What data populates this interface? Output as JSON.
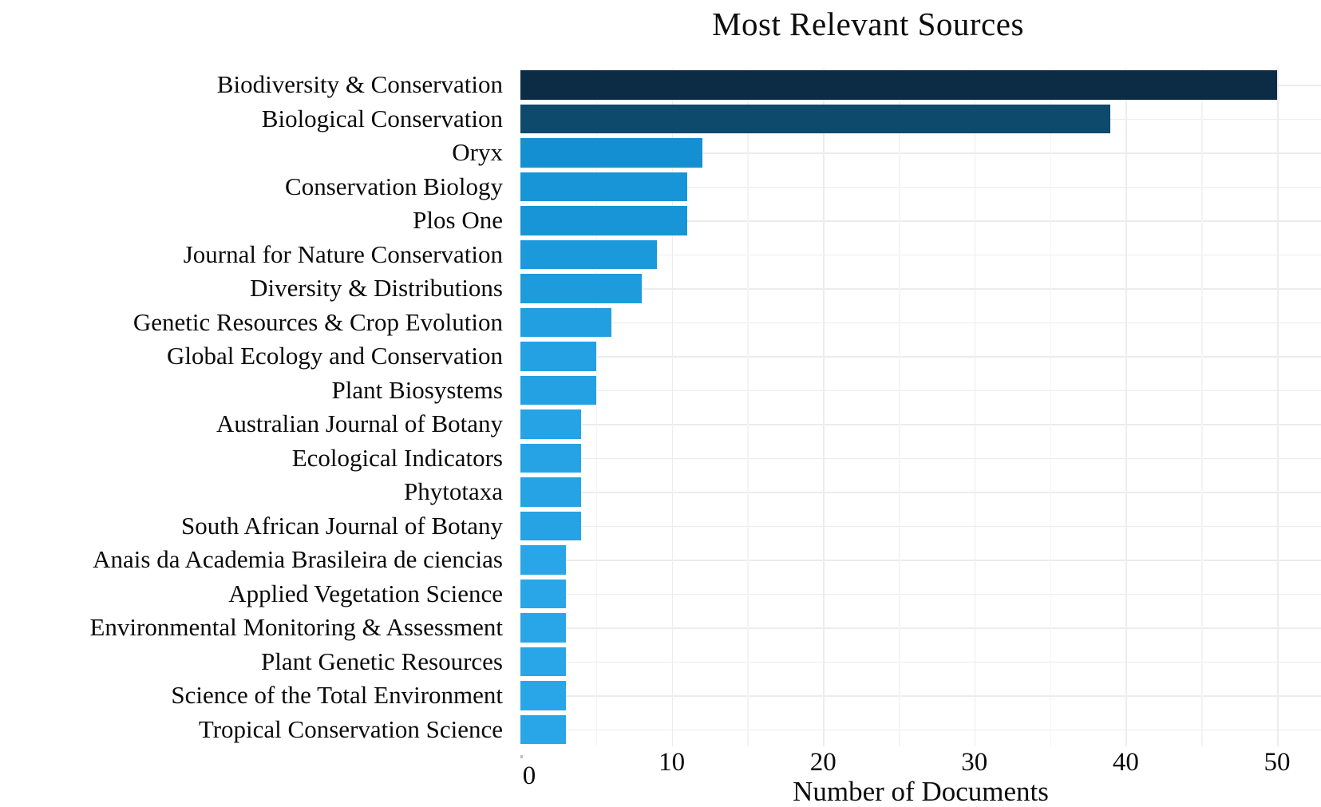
{
  "page": {
    "background": "#ffffff"
  },
  "chart_data": {
    "type": "bar",
    "orientation": "horizontal",
    "title": "Most Relevant Sources",
    "xlabel": "Number of Documents",
    "ylabel": "",
    "categories": [
      "Biodiversity & Conservation",
      "Biological Conservation",
      "Oryx",
      "Conservation Biology",
      "Plos One",
      "Journal for Nature Conservation",
      "Diversity & Distributions",
      "Genetic Resources & Crop Evolution",
      "Global Ecology and Conservation",
      "Plant Biosystems",
      "Australian Journal of Botany",
      "Ecological Indicators",
      "Phytotaxa",
      "South African Journal of Botany",
      "Anais da Academia Brasileira de ciencias",
      "Applied Vegetation Science",
      "Environmental Monitoring & Assessment",
      "Plant Genetic Resources",
      "Science of the Total Environment",
      "Tropical Conservation Science"
    ],
    "values": [
      50,
      39,
      12,
      11,
      11,
      9,
      8,
      6,
      5,
      5,
      4,
      4,
      4,
      4,
      3,
      3,
      3,
      3,
      3,
      3
    ],
    "bar_colors": [
      "#0c2b45",
      "#0e4a6b",
      "#1490d2",
      "#1795d6",
      "#1795d6",
      "#1b99da",
      "#1d9bdc",
      "#219fe0",
      "#23a1e2",
      "#23a1e2",
      "#26a3e4",
      "#26a3e4",
      "#26a3e4",
      "#26a3e4",
      "#29a6e8",
      "#29a6e8",
      "#29a6e8",
      "#29a6e8",
      "#29a6e8",
      "#29a6e8"
    ],
    "xlim": [
      0,
      52.9
    ],
    "x_ticks": [
      0,
      10,
      20,
      30,
      40,
      50
    ],
    "x_minor_ticks": [
      5,
      15,
      25,
      35,
      45
    ],
    "grid": true,
    "gridline_color": "#ececec",
    "legend": "none",
    "text_color": "#0b0b0b"
  }
}
